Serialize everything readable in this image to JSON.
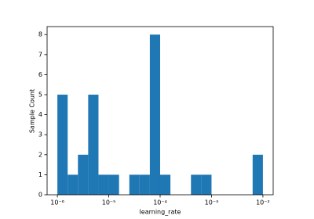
{
  "chart_data": {
    "type": "histogram",
    "xlabel": "learning_rate",
    "ylabel": "Sample Count",
    "color": "#1f77b4",
    "xscale": "log",
    "bins": [
      1e-06,
      1.585e-06,
      2.512e-06,
      3.981e-06,
      6.31e-06,
      1e-05,
      1.585e-05,
      2.512e-05,
      3.981e-05,
      6.31e-05,
      0.0001,
      0.0001585,
      0.0002512,
      0.0003981,
      0.000631,
      0.001,
      0.001585,
      0.002512,
      0.003981,
      0.00631,
      0.01
    ],
    "counts": [
      5,
      1,
      2,
      5,
      1,
      1,
      0,
      1,
      1,
      8,
      1,
      0,
      0,
      1,
      1,
      0,
      0,
      0,
      0,
      2
    ],
    "xlim": [
      6.31e-07,
      0.01585
    ],
    "ylim": [
      0,
      8.4
    ],
    "xticks": [
      {
        "value": 1e-06,
        "label": "10⁻⁶"
      },
      {
        "value": 1e-05,
        "label": "10⁻⁵"
      },
      {
        "value": 0.0001,
        "label": "10⁻⁴"
      },
      {
        "value": 0.001,
        "label": "10⁻³"
      },
      {
        "value": 0.01,
        "label": "10⁻²"
      }
    ],
    "yticks": [
      0,
      1,
      2,
      3,
      4,
      5,
      6,
      7,
      8
    ]
  }
}
